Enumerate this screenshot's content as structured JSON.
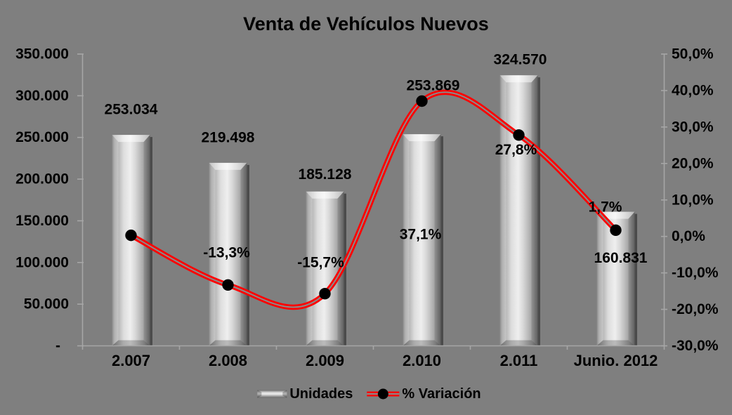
{
  "title": "Venta de Vehículos Nuevos",
  "legend": {
    "units_label": "Unidades",
    "variation_label": "% Variación"
  },
  "chart_data": {
    "type": "combo-bar-line",
    "title": "Venta de Vehículos Nuevos",
    "categories": [
      "2.007",
      "2.008",
      "2.009",
      "2.010",
      "2.011",
      "Junio. 2012"
    ],
    "series": [
      {
        "name": "Unidades",
        "type": "bar",
        "axis": "left",
        "values": [
          253034,
          219498,
          185128,
          253869,
          324570,
          160831
        ],
        "labels": [
          "253.034",
          "219.498",
          "185.128",
          "253.869",
          "324.570",
          "160.831"
        ]
      },
      {
        "name": "% Variación",
        "type": "line",
        "axis": "right",
        "values": [
          0.3,
          -13.3,
          -15.7,
          37.1,
          27.8,
          1.7
        ],
        "labels": [
          "",
          "-13,3%",
          "-15,7%",
          "37,1%",
          "27,8%",
          "1,7%"
        ]
      }
    ],
    "left_axis": {
      "min": 0,
      "max": 350000,
      "step": 50000,
      "ticks": [
        "350.000",
        "300.000",
        "250.000",
        "200.000",
        "150.000",
        "100.000",
        "50.000",
        "-"
      ]
    },
    "right_axis": {
      "min": -30,
      "max": 50,
      "step": 10,
      "ticks": [
        "50,0%",
        "40,0%",
        "30,0%",
        "20,0%",
        "10,0%",
        "0,0%",
        "-10,0%",
        "-20,0%",
        "-30,0%"
      ]
    },
    "grid": "off",
    "legend_position": "bottom",
    "colors": {
      "background": "#7f7f7f",
      "axis": "#a6a6a6",
      "text": "#000000",
      "bar_face_light": "#efefef",
      "bar_face_dark": "#6a6a6a",
      "bar_shadow": "#3f3f3f",
      "line": "#ff0000",
      "line_core": "#8a8a8a",
      "point": "#000000"
    }
  }
}
